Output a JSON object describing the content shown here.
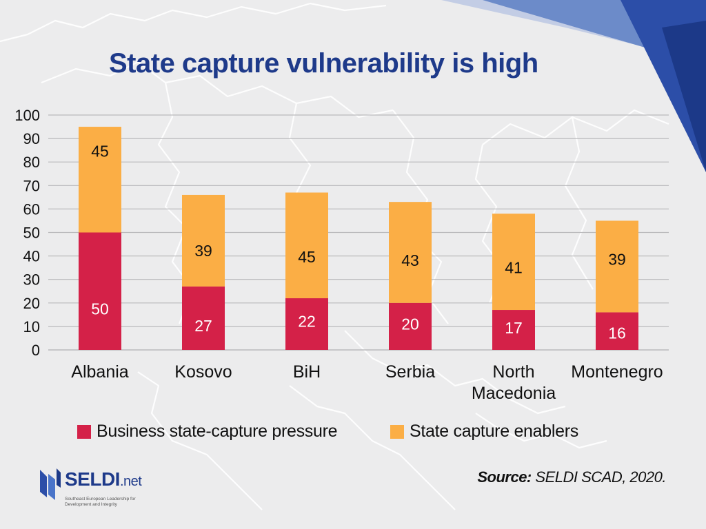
{
  "title": "State capture vulnerability is high",
  "colors": {
    "pressure": "#d42148",
    "enablers": "#fbae45",
    "title": "#1e3a8a",
    "grid": "#b9b9bb",
    "text": "#111111"
  },
  "chart_data": {
    "type": "bar",
    "stacked": true,
    "categories": [
      [
        "Albania"
      ],
      [
        "Kosovo"
      ],
      [
        "BiH"
      ],
      [
        "Serbia"
      ],
      [
        "North",
        "Macedonia"
      ],
      [
        "Montenegro"
      ]
    ],
    "series": [
      {
        "name": "Business state-capture pressure",
        "values": [
          50,
          27,
          22,
          20,
          17,
          16
        ]
      },
      {
        "name": "State capture enablers",
        "values": [
          45,
          39,
          45,
          43,
          41,
          39
        ]
      }
    ],
    "ylim": [
      0,
      100
    ],
    "yticks": [
      0,
      10,
      20,
      30,
      40,
      50,
      60,
      70,
      80,
      90,
      100
    ],
    "grid": true,
    "xlabel": "",
    "ylabel": "",
    "legend": "bottom"
  },
  "legend": {
    "pressure_label": "Business state-capture pressure",
    "enablers_label": "State capture enablers"
  },
  "source": {
    "label": "Source:",
    "text": "SELDI SCAD, 2020."
  },
  "logo": {
    "name": "SELDI",
    "suffix": ".net",
    "tagline": "Southeast European Leadership for Development and Integrity"
  }
}
